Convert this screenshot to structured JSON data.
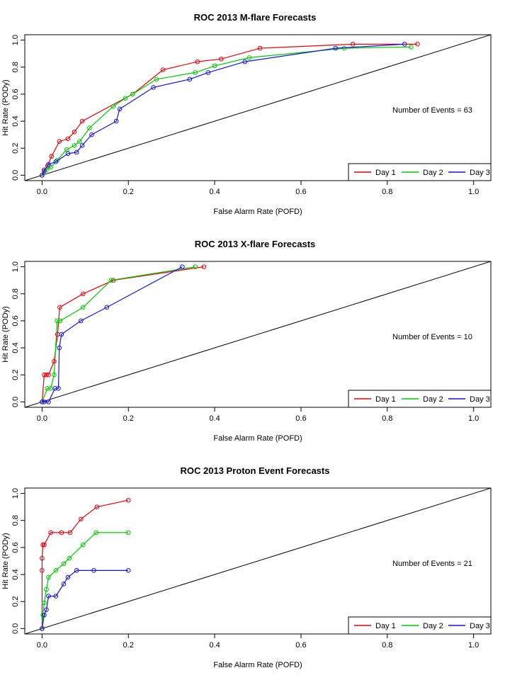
{
  "colors": {
    "day1": "#e8000b",
    "day2": "#00c800",
    "day3": "#1414e6",
    "diagonal": "#000000"
  },
  "chart_data": [
    {
      "type": "line",
      "title": "ROC  2013 M-flare Forecasts",
      "xlabel": "False Alarm Rate (POFD)",
      "ylabel": "Hit Rate (PODy)",
      "xlim": [
        0.0,
        1.0
      ],
      "ylim": [
        0.0,
        1.0
      ],
      "xticks": [
        "0.0",
        "0.2",
        "0.4",
        "0.6",
        "0.8",
        "1.0"
      ],
      "yticks": [
        "0.0",
        "0.2",
        "0.4",
        "0.6",
        "0.8",
        "1.0"
      ],
      "grid": false,
      "legend_position": "bottom-right",
      "annotation": "Number of Events =  63",
      "diagonal": true,
      "series": [
        {
          "name": "Day 1",
          "color_key": "day1",
          "x": [
            0.0,
            0.005,
            0.013,
            0.022,
            0.04,
            0.06,
            0.075,
            0.093,
            0.21,
            0.28,
            0.36,
            0.415,
            0.505,
            0.72,
            0.87
          ],
          "y": [
            0.0,
            0.04,
            0.07,
            0.14,
            0.25,
            0.27,
            0.32,
            0.4,
            0.6,
            0.78,
            0.84,
            0.86,
            0.94,
            0.97,
            0.97
          ]
        },
        {
          "name": "Day 2",
          "color_key": "day2",
          "x": [
            0.0,
            0.01,
            0.02,
            0.035,
            0.057,
            0.075,
            0.087,
            0.11,
            0.165,
            0.193,
            0.21,
            0.265,
            0.355,
            0.4,
            0.48,
            0.7,
            0.855
          ],
          "y": [
            0.0,
            0.04,
            0.06,
            0.11,
            0.19,
            0.22,
            0.25,
            0.35,
            0.51,
            0.57,
            0.6,
            0.71,
            0.76,
            0.81,
            0.87,
            0.94,
            0.95
          ]
        },
        {
          "name": "Day 3",
          "color_key": "day3",
          "x": [
            0.0,
            0.005,
            0.015,
            0.032,
            0.06,
            0.08,
            0.093,
            0.115,
            0.172,
            0.18,
            0.258,
            0.342,
            0.385,
            0.47,
            0.68,
            0.84
          ],
          "y": [
            0.0,
            0.03,
            0.08,
            0.1,
            0.16,
            0.17,
            0.22,
            0.3,
            0.4,
            0.49,
            0.65,
            0.71,
            0.76,
            0.84,
            0.94,
            0.97
          ]
        }
      ]
    },
    {
      "type": "line",
      "title": "ROC  2013 X-flare Forecasts",
      "xlabel": "False Alarm Rate (POFD)",
      "ylabel": "Hit Rate (PODy)",
      "xlim": [
        0.0,
        1.0
      ],
      "ylim": [
        0.0,
        1.0
      ],
      "xticks": [
        "0.0",
        "0.2",
        "0.4",
        "0.6",
        "0.8",
        "1.0"
      ],
      "yticks": [
        "0.0",
        "0.2",
        "0.4",
        "0.6",
        "0.8",
        "1.0"
      ],
      "grid": false,
      "legend_position": "bottom-right",
      "annotation": "Number of Events =  10",
      "diagonal": true,
      "series": [
        {
          "name": "Day 1",
          "color_key": "day1",
          "x": [
            0.0,
            0.005,
            0.01,
            0.015,
            0.028,
            0.036,
            0.041,
            0.095,
            0.165,
            0.375
          ],
          "y": [
            0.0,
            0.2,
            0.2,
            0.2,
            0.3,
            0.5,
            0.7,
            0.8,
            0.9,
            1.0
          ]
        },
        {
          "name": "Day 2",
          "color_key": "day2",
          "x": [
            0.0,
            0.012,
            0.02,
            0.028,
            0.035,
            0.042,
            0.095,
            0.16,
            0.355
          ],
          "y": [
            0.0,
            0.1,
            0.1,
            0.2,
            0.6,
            0.6,
            0.7,
            0.9,
            1.0
          ]
        },
        {
          "name": "Day 3",
          "color_key": "day3",
          "x": [
            0.0,
            0.005,
            0.015,
            0.03,
            0.038,
            0.04,
            0.045,
            0.09,
            0.15,
            0.325
          ],
          "y": [
            0.0,
            0.0,
            0.0,
            0.1,
            0.1,
            0.4,
            0.5,
            0.6,
            0.7,
            1.0
          ]
        }
      ]
    },
    {
      "type": "line",
      "title": "ROC  2013 Proton Event Forecasts",
      "xlabel": "False Alarm Rate (POFD)",
      "ylabel": "Hit Rate (PODy)",
      "xlim": [
        0.0,
        1.0
      ],
      "ylim": [
        0.0,
        1.0
      ],
      "xticks": [
        "0.0",
        "0.2",
        "0.4",
        "0.6",
        "0.8",
        "1.0"
      ],
      "yticks": [
        "0.0",
        "0.2",
        "0.4",
        "0.6",
        "0.8",
        "1.0"
      ],
      "grid": false,
      "legend_position": "bottom-right",
      "annotation": "Number of Events =  21",
      "diagonal": true,
      "series": [
        {
          "name": "Day 1",
          "color_key": "day1",
          "x": [
            0.0,
            0.0,
            0.0,
            0.002,
            0.005,
            0.02,
            0.045,
            0.065,
            0.09,
            0.127,
            0.2
          ],
          "y": [
            0.0,
            0.43,
            0.52,
            0.62,
            0.62,
            0.71,
            0.71,
            0.71,
            0.81,
            0.9,
            0.95
          ]
        },
        {
          "name": "Day 2",
          "color_key": "day2",
          "x": [
            0.0,
            0.002,
            0.005,
            0.01,
            0.015,
            0.032,
            0.05,
            0.063,
            0.095,
            0.125,
            0.2
          ],
          "y": [
            0.0,
            0.1,
            0.19,
            0.29,
            0.38,
            0.43,
            0.48,
            0.52,
            0.62,
            0.71,
            0.71
          ]
        },
        {
          "name": "Day 3",
          "color_key": "day3",
          "x": [
            0.0,
            0.005,
            0.01,
            0.015,
            0.032,
            0.05,
            0.06,
            0.08,
            0.12,
            0.2
          ],
          "y": [
            0.0,
            0.1,
            0.14,
            0.24,
            0.24,
            0.33,
            0.38,
            0.43,
            0.43,
            0.43
          ]
        }
      ]
    }
  ]
}
